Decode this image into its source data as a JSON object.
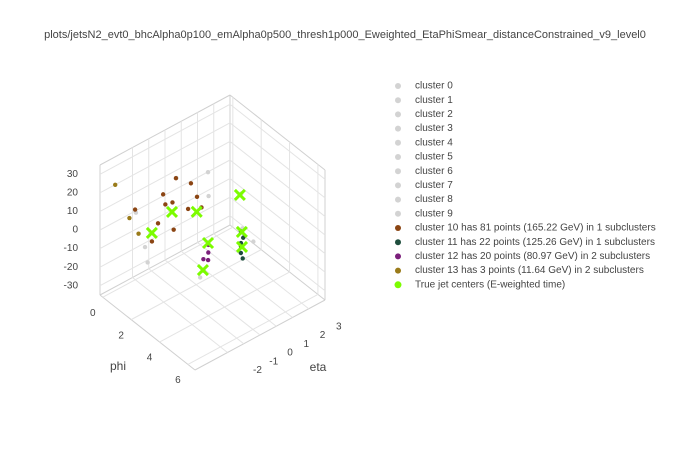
{
  "chart_data": {
    "type": "scatter3d",
    "title": "plots/jetsN2_evt0_bhcAlpha0p100_emAlpha0p500_thresh1p000_Eweighted_EtaPhiSmear_distanceConstrained_v9_level0",
    "xaxis_title": "eta",
    "yaxis_title": "phi",
    "xlim": [
      -4,
      4
    ],
    "ylim": [
      -0.2,
      6.5
    ],
    "zlim": [
      -35,
      35
    ],
    "xticks": [
      -2,
      -1,
      0,
      1,
      2,
      3
    ],
    "yticks": [
      0,
      2,
      4,
      6
    ],
    "zticks": [
      -30,
      -20,
      -10,
      0,
      10,
      20,
      30
    ],
    "grid": true,
    "series": [
      {
        "name": "cluster 0",
        "color": "#d3d3d3",
        "marker": "circle",
        "x": [
          1.6
        ],
        "y": [
          1.0
        ],
        "z": [
          12
        ]
      },
      {
        "name": "cluster 1",
        "color": "#d3d3d3",
        "marker": "circle",
        "x": [
          2.6
        ],
        "y": [
          2.2
        ],
        "z": [
          3
        ]
      },
      {
        "name": "cluster 2",
        "color": "#d3d3d3",
        "marker": "circle",
        "x": [
          1.2
        ],
        "y": [
          1.5
        ],
        "z": [
          4
        ]
      },
      {
        "name": "cluster 3",
        "color": "#d3d3d3",
        "marker": "circle",
        "x": [
          -2.8
        ],
        "y": [
          1.6
        ],
        "z": [
          -4
        ]
      },
      {
        "name": "cluster 4",
        "color": "#d3d3d3",
        "marker": "circle",
        "x": [
          -2.9
        ],
        "y": [
          1.9
        ],
        "z": [
          -10
        ]
      },
      {
        "name": "cluster 5",
        "color": "#d3d3d3",
        "marker": "circle",
        "x": [
          0.9
        ],
        "y": [
          5.0
        ],
        "z": [
          2
        ]
      },
      {
        "name": "cluster 6",
        "color": "#d3d3d3",
        "marker": "circle",
        "x": [
          -1.5
        ],
        "y": [
          4.0
        ],
        "z": [
          -12
        ]
      },
      {
        "name": "cluster 7",
        "color": "#d3d3d3",
        "marker": "circle",
        "x": [
          -2.4
        ],
        "y": [
          0.5
        ],
        "z": [
          6
        ]
      },
      {
        "name": "cluster 8",
        "color": "#d3d3d3",
        "marker": "circle",
        "x": [
          0.0
        ],
        "y": [
          0.6
        ],
        "z": [
          14
        ]
      },
      {
        "name": "cluster 9",
        "color": "#d3d3d3",
        "marker": "circle",
        "x": [
          1.8
        ],
        "y": [
          3.2
        ],
        "z": [
          -6
        ]
      },
      {
        "name": "cluster 10 has 81 points (165.22 GeV) in 1 subclusters",
        "color": "#8b4513",
        "marker": "circle",
        "x": [
          -0.5,
          -0.9,
          0.2,
          -2.2,
          -2.0,
          0.4,
          0.2,
          -2.8,
          -0.6,
          0.5,
          -1.2,
          -0.2
        ],
        "y": [
          0.9,
          0.7,
          1.2,
          1.4,
          1.6,
          1.6,
          1.4,
          0.9,
          1.1,
          1.8,
          1.2,
          0.8
        ],
        "z": [
          5,
          10,
          0,
          -5,
          5,
          8,
          15,
          12,
          -8,
          3,
          9,
          16
        ]
      },
      {
        "name": "cluster 11 has 22 points (125.26 GeV) in 1 subclusters",
        "color": "#1f4e3d",
        "marker": "circle",
        "x": [
          0.4,
          0.45,
          0.35,
          0.4,
          0.42,
          0.38
        ],
        "y": [
          4.7,
          4.8,
          4.75,
          4.7,
          4.8,
          4.72
        ],
        "z": [
          0,
          5,
          -3,
          8,
          -6,
          2
        ]
      },
      {
        "name": "cluster 12 has 20 points (80.97 GeV) in 2 subclusters",
        "color": "#7b1f7b",
        "marker": "circle",
        "x": [
          -2.0,
          -2.1,
          -0.65,
          -0.55,
          -0.75
        ],
        "y": [
          4.8,
          4.9,
          3.6,
          3.5,
          3.7
        ],
        "z": [
          5,
          0,
          -5,
          -2,
          -8
        ]
      },
      {
        "name": "cluster 13 has 3 points (11.64 GeV) in 2 subclusters",
        "color": "#9a7b1a",
        "marker": "circle",
        "x": [
          -3.5,
          -2.5,
          -2.8
        ],
        "y": [
          0.3,
          0.8,
          0.5
        ],
        "z": [
          25,
          -3,
          5
        ]
      },
      {
        "name": "True jet centers (E-weighted time)",
        "color": "#7cfc00",
        "marker": "x",
        "x": [
          2.74,
          -0.53,
          0.38,
          -2.24,
          -0.65,
          0.41,
          1.1,
          -2.09
        ],
        "y": [
          1.94,
          0.9,
          1.6,
          1.44,
          3.58,
          4.76,
          3.96,
          4.87
        ],
        "z": [
          0,
          0,
          0,
          0,
          0,
          0,
          0,
          0
        ]
      }
    ]
  }
}
